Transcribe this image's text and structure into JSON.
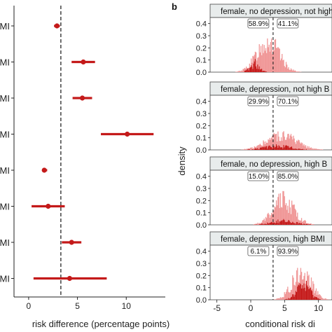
{
  "panel_b_label": "b",
  "chart_data": [
    {
      "type": "scatter",
      "panel": "a",
      "xlabel": "risk difference (percentage points)",
      "ylabel": "",
      "xlim": [
        -1.5,
        14
      ],
      "xticks": [
        0,
        5,
        10
      ],
      "reference_line": 3.3,
      "row_labels": [
        "MI",
        "MI",
        "MI",
        "MI",
        "MI",
        "MI",
        "MI",
        "MI"
      ],
      "points": [
        {
          "estimate": 2.9,
          "low": 2.6,
          "high": 3.2
        },
        {
          "estimate": 5.6,
          "low": 4.4,
          "high": 6.8
        },
        {
          "estimate": 5.5,
          "low": 4.5,
          "high": 6.5
        },
        {
          "estimate": 10.1,
          "low": 7.4,
          "high": 12.8
        },
        {
          "estimate": 1.6,
          "low": 1.4,
          "high": 1.9
        },
        {
          "estimate": 2.0,
          "low": 0.3,
          "high": 3.7
        },
        {
          "estimate": 4.4,
          "low": 3.4,
          "high": 5.4
        },
        {
          "estimate": 4.2,
          "low": 0.5,
          "high": 8.0
        }
      ],
      "color": "#c41a1a"
    },
    {
      "type": "histogram",
      "panel": "b",
      "xlabel": "conditional risk di",
      "ylabel": "density",
      "xlim": [
        -6,
        12
      ],
      "ylim": [
        0,
        0.45
      ],
      "xticks": [
        -5,
        0,
        5,
        10
      ],
      "yticks": [
        0.0,
        0.1,
        0.2,
        0.3,
        0.4
      ],
      "ytick_labels": [
        "0.0",
        "0.1",
        "0.2",
        "0.3",
        "0.4"
      ],
      "reference_line": 3.3,
      "colors": {
        "light": "#f09898",
        "dark": "#c41a1a",
        "strip": "#e8ecec",
        "line": "#222222"
      },
      "facets": [
        {
          "title": "female, no depression, not high",
          "left_pct": "58.9%",
          "right_pct": "41.1%",
          "light": {
            "center": 2.5,
            "sd": 1.6,
            "peak": 0.25
          },
          "dark": {
            "center": 0.6,
            "sd": 0.7,
            "peak": 0.07
          }
        },
        {
          "title": "female, depression, not high B",
          "left_pct": "29.9%",
          "right_pct": "70.1%",
          "light": {
            "center": 4.5,
            "sd": 2.2,
            "peak": 0.12
          },
          "dark": {
            "center": 4.0,
            "sd": 2.0,
            "peak": 0.03
          }
        },
        {
          "title": "female, no depression, high B",
          "left_pct": "15.0%",
          "right_pct": "85.0%",
          "light": {
            "center": 4.8,
            "sd": 1.6,
            "peak": 0.2
          },
          "dark": {
            "center": 4.8,
            "sd": 1.8,
            "peak": 0.03
          }
        },
        {
          "title": "female, depression, high BMI",
          "left_pct": "6.1%",
          "right_pct": "93.9%",
          "light": {
            "center": 7.5,
            "sd": 1.4,
            "peak": 0.22
          },
          "dark": {
            "center": 7.8,
            "sd": 1.0,
            "peak": 0.11
          }
        }
      ]
    }
  ]
}
